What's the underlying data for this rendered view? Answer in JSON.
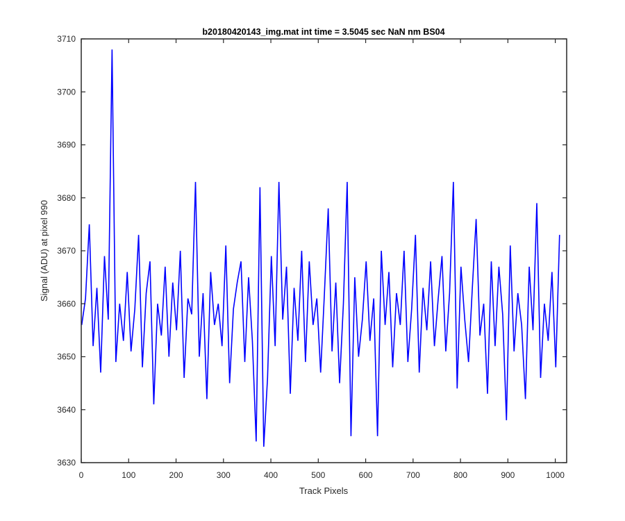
{
  "chart_data": {
    "type": "line",
    "title": "b20180420143_img.mat int time = 3.5045 sec  NaN nm BS04",
    "xlabel": "Track Pixels",
    "ylabel": "Signal (ADU) at pixel 990",
    "xlim": [
      0,
      1024
    ],
    "ylim": [
      3630,
      3710
    ],
    "xticks": [
      0,
      100,
      200,
      300,
      400,
      500,
      600,
      700,
      800,
      900,
      1000
    ],
    "yticks": [
      3630,
      3640,
      3650,
      3660,
      3670,
      3680,
      3690,
      3700,
      3710
    ],
    "grid": false,
    "line_color": "#0000ff",
    "series": [
      {
        "x_start": 1,
        "x_step": 8,
        "values": [
          3656,
          3661,
          3675,
          3652,
          3663,
          3647,
          3669,
          3657,
          3708,
          3649,
          3660,
          3653,
          3666,
          3651,
          3659,
          3673,
          3648,
          3662,
          3668,
          3641,
          3660,
          3654,
          3667,
          3650,
          3664,
          3655,
          3670,
          3646,
          3661,
          3658,
          3683,
          3650,
          3662,
          3642,
          3666,
          3656,
          3660,
          3652,
          3671,
          3645,
          3659,
          3664,
          3668,
          3649,
          3665,
          3653,
          3634,
          3682,
          3633,
          3646,
          3669,
          3652,
          3683,
          3657,
          3667,
          3643,
          3663,
          3653,
          3670,
          3649,
          3668,
          3656,
          3661,
          3647,
          3662,
          3678,
          3651,
          3664,
          3645,
          3660,
          3683,
          3635,
          3665,
          3650,
          3657,
          3668,
          3653,
          3661,
          3635,
          3670,
          3656,
          3666,
          3648,
          3662,
          3656,
          3670,
          3649,
          3659,
          3673,
          3647,
          3663,
          3655,
          3668,
          3652,
          3661,
          3669,
          3651,
          3662,
          3683,
          3644,
          3667,
          3657,
          3649,
          3663,
          3676,
          3654,
          3660,
          3643,
          3668,
          3652,
          3667,
          3658,
          3638,
          3671,
          3651,
          3662,
          3656,
          3642,
          3667,
          3655,
          3679,
          3646,
          3660,
          3653,
          3666,
          3648,
          3673
        ]
      }
    ]
  }
}
